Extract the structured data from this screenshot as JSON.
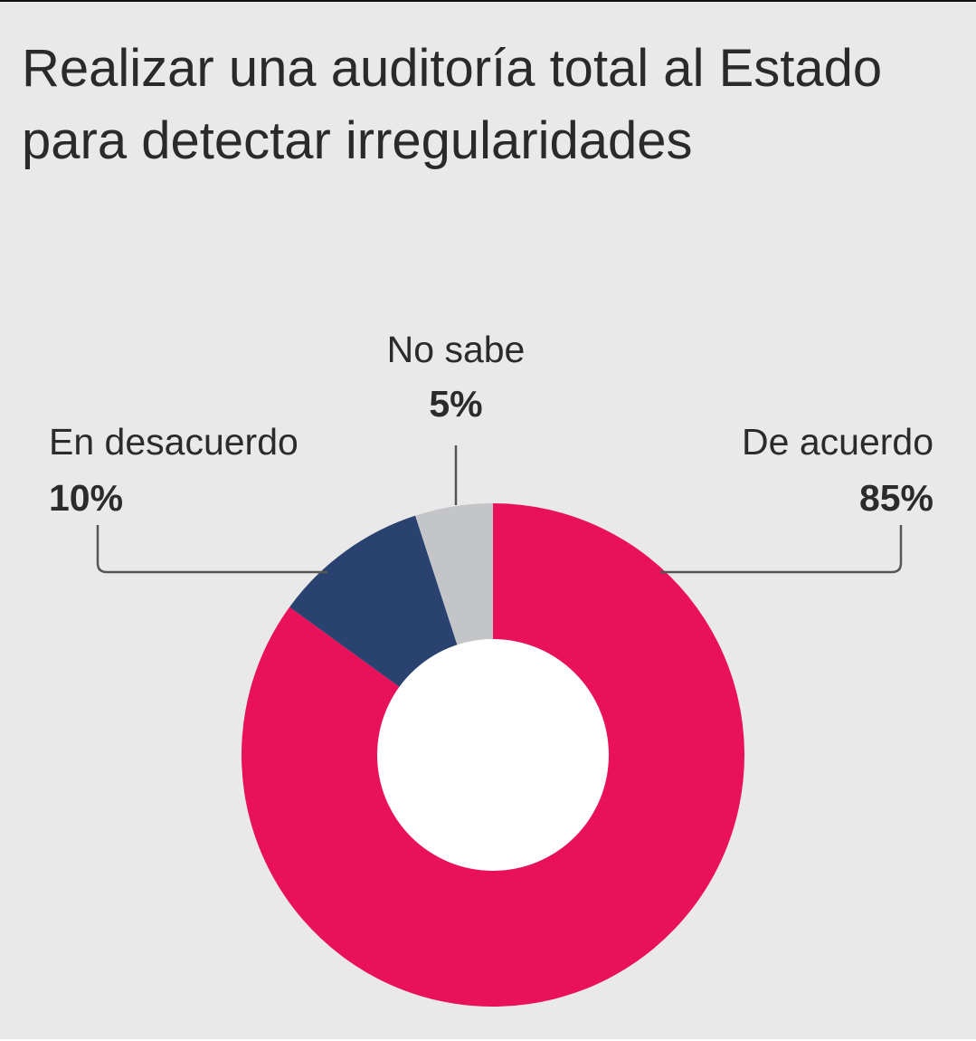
{
  "chart_data": {
    "type": "pie",
    "variant": "donut",
    "title": "Realizar una auditoría total al Estado para detectar irregularidades",
    "slices": [
      {
        "name": "De acuerdo",
        "value": 85,
        "label": "85%",
        "color": "#e8115a"
      },
      {
        "name": "En desacuerdo",
        "value": 10,
        "label": "10%",
        "color": "#2a4270"
      },
      {
        "name": "No sabe",
        "value": 5,
        "label": "5%",
        "color": "#c4c5c8"
      }
    ]
  },
  "colors": {
    "background": "#e9e9ea",
    "text": "#2a2a2a",
    "donut_hole": "#ffffff"
  }
}
